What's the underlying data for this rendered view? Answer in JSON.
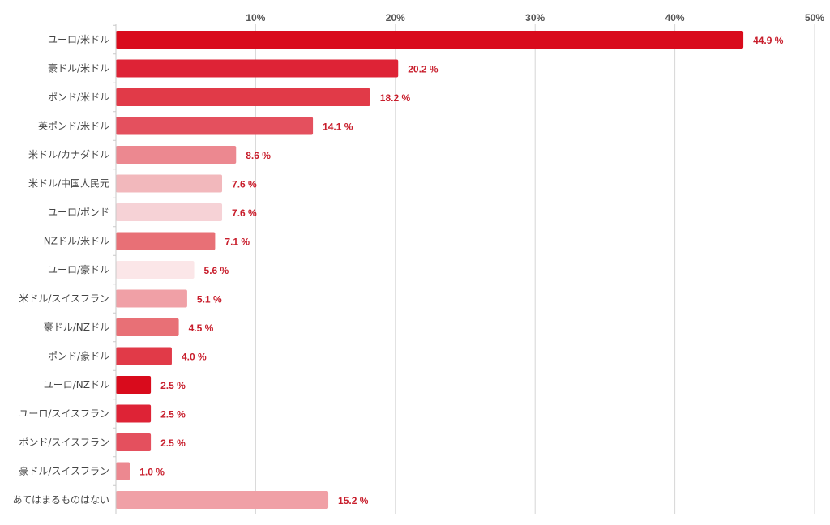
{
  "chart_data": {
    "type": "bar",
    "orientation": "horizontal",
    "categories": [
      "ユーロ/米ドル",
      "豪ドル/米ドル",
      "ポンド/米ドル",
      "英ポンド/米ドル",
      "米ドル/カナダドル",
      "米ドル/中国人民元",
      "ユーロ/ポンド",
      "NZドル/米ドル",
      "ユーロ/豪ドル",
      "米ドル/スイスフラン",
      "豪ドル/NZドル",
      "ポンド/豪ドル",
      "ユーロ/NZドル",
      "ユーロ/スイスフラン",
      "ポンド/スイスフラン",
      "豪ドル/スイスフラン",
      "あてはまるものはない"
    ],
    "values": [
      44.9,
      20.2,
      18.2,
      14.1,
      8.6,
      7.6,
      7.6,
      7.1,
      5.6,
      5.1,
      4.5,
      4.0,
      2.5,
      2.5,
      2.5,
      1.0,
      15.2
    ],
    "value_labels": [
      "44.9 %",
      "20.2 %",
      "18.2 %",
      "14.1 %",
      "8.6 %",
      "7.6 %",
      "7.6 %",
      "7.1 %",
      "5.6 %",
      "5.1 %",
      "4.5 %",
      "4.0 %",
      "2.5 %",
      "2.5 %",
      "2.5 %",
      "1.0 %",
      "15.2 %"
    ],
    "bar_colors": [
      "#d90b1c",
      "#de2336",
      "#e13a48",
      "#e4505e",
      "#ec8890",
      "#f2b8bc",
      "#f6d2d6",
      "#e87076",
      "#fbe6e8",
      "#f0a0a6",
      "#e87076",
      "#e13a48",
      "#d90b1c",
      "#de2336",
      "#e4505e",
      "#ec8890",
      "#f0a0a6"
    ],
    "xlim": [
      0,
      50
    ],
    "x_ticks": [
      10,
      20,
      30,
      40,
      50
    ],
    "x_tick_labels": [
      "10%",
      "20%",
      "30%",
      "40%",
      "50%"
    ],
    "grid": true,
    "title": "",
    "xlabel": "",
    "ylabel": "",
    "value_label_color": "#c81e2c"
  }
}
